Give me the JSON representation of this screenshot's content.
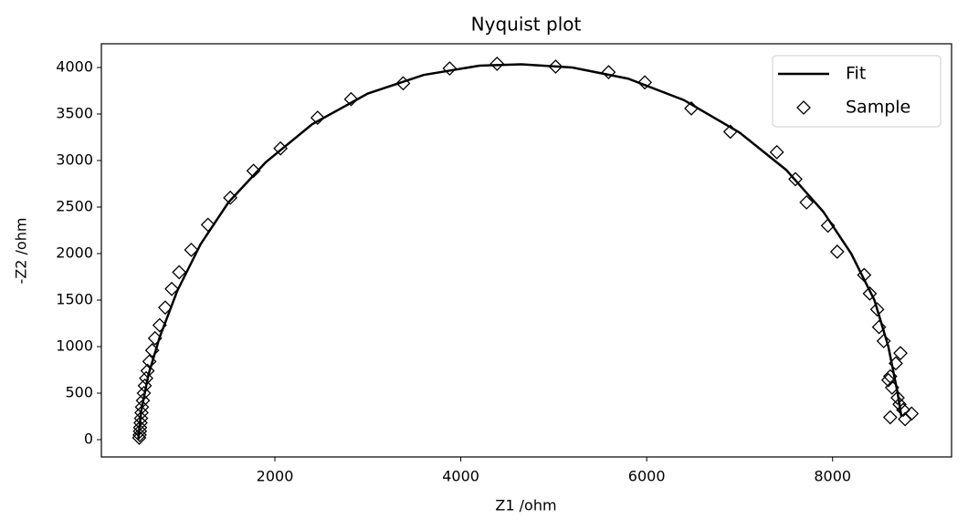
{
  "chart_data": {
    "type": "scatter",
    "title": "Nyquist plot",
    "xlabel": "Z1 /ohm",
    "ylabel": "-Z2 /ohm",
    "xlim": [
      133,
      9280
    ],
    "ylim": [
      -186,
      4255
    ],
    "xticks": [
      2000,
      4000,
      6000,
      8000
    ],
    "yticks": [
      0,
      500,
      1000,
      1500,
      2000,
      2500,
      3000,
      3500,
      4000
    ],
    "legend": "upper right",
    "series": [
      {
        "name": "Fit",
        "type": "line",
        "color": "#000000",
        "x": [
          530,
          560,
          640,
          760,
          950,
          1200,
          1500,
          1900,
          2400,
          3000,
          3600,
          4200,
          4650,
          5200,
          5800,
          6400,
          7000,
          7500,
          7900,
          8200,
          8450,
          8600,
          8700,
          8740
        ],
        "values": [
          0,
          300,
          700,
          1100,
          1600,
          2100,
          2550,
          2980,
          3390,
          3720,
          3920,
          4020,
          4035,
          4000,
          3880,
          3650,
          3300,
          2900,
          2450,
          2000,
          1500,
          1000,
          500,
          250
        ]
      },
      {
        "name": "Sample",
        "type": "scatter",
        "color": "#000000",
        "x": [
          540,
          545,
          548,
          550,
          555,
          560,
          565,
          570,
          580,
          590,
          600,
          615,
          630,
          650,
          680,
          710,
          760,
          820,
          890,
          970,
          1100,
          1280,
          1520,
          1770,
          2060,
          2460,
          2820,
          3380,
          3880,
          4390,
          5020,
          5590,
          5980,
          6480,
          6900,
          7400,
          7600,
          7720,
          7950,
          8050,
          8340,
          8400,
          8480,
          8500,
          8550,
          8600,
          8640,
          8680,
          8730,
          8700,
          8720,
          8760,
          8850,
          8780,
          8620,
          8620
        ],
        "values": [
          20,
          50,
          90,
          130,
          180,
          230,
          290,
          350,
          420,
          500,
          580,
          660,
          740,
          840,
          960,
          1090,
          1230,
          1420,
          1620,
          1800,
          2040,
          2310,
          2600,
          2890,
          3130,
          3460,
          3660,
          3830,
          3990,
          4040,
          4010,
          3950,
          3840,
          3560,
          3310,
          3090,
          2800,
          2550,
          2300,
          2020,
          1770,
          1570,
          1400,
          1210,
          1060,
          640,
          560,
          820,
          930,
          450,
          380,
          320,
          280,
          220,
          240,
          680
        ]
      }
    ]
  }
}
